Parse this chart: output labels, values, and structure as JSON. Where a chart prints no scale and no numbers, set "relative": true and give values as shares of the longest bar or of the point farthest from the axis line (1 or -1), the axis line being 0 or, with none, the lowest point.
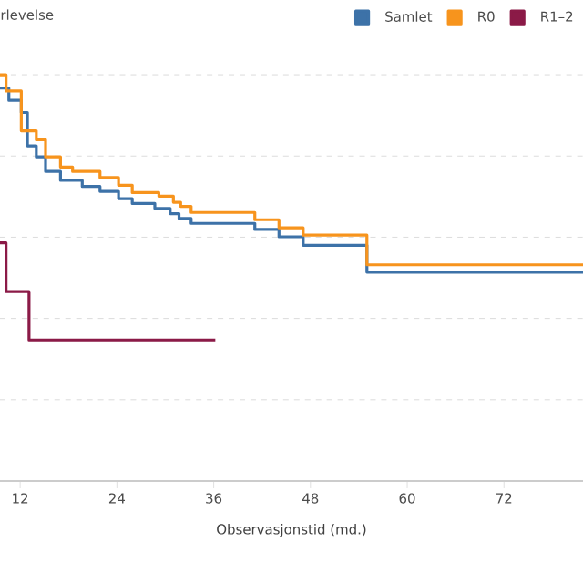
{
  "chart_data": {
    "type": "step",
    "title": "rlevelse",
    "xlabel": "Observasjonstid (md.)",
    "relative": true,
    "xlim": [
      9.5,
      81.8
    ],
    "xticks": [
      12,
      24,
      36,
      48,
      60,
      72
    ],
    "grid": "y",
    "legend": "top right",
    "series": [
      {
        "name": "Samlet",
        "color": "#3d72a8",
        "x": [
          9.5,
          10.6,
          12.14,
          12.9,
          14.0,
          15.15,
          17.0,
          19.7,
          21.9,
          24.2,
          25.9,
          28.7,
          30.6,
          31.7,
          33.2,
          41.1,
          44.1,
          47.1,
          55.0,
          81.8
        ],
        "values": [
          0.967,
          0.937,
          0.907,
          0.825,
          0.798,
          0.762,
          0.74,
          0.725,
          0.713,
          0.695,
          0.683,
          0.671,
          0.658,
          0.646,
          0.634,
          0.619,
          0.601,
          0.58,
          0.514,
          0.514
        ]
      },
      {
        "name": "R0",
        "color": "#f7941d",
        "x": [
          9.5,
          10.25,
          12.14,
          14.0,
          15.15,
          17.0,
          18.5,
          21.9,
          24.2,
          25.9,
          29.2,
          31.0,
          31.9,
          33.2,
          41.1,
          44.1,
          47.1,
          55.0,
          81.8
        ],
        "values": [
          1.0,
          0.96,
          0.862,
          0.84,
          0.798,
          0.773,
          0.762,
          0.747,
          0.728,
          0.71,
          0.701,
          0.686,
          0.676,
          0.661,
          0.643,
          0.623,
          0.605,
          0.532,
          0.532
        ]
      },
      {
        "name": "R1–2",
        "color": "#8b1a47",
        "x": [
          9.5,
          10.25,
          13.1,
          36.2
        ],
        "values": [
          0.586,
          0.466,
          0.347,
          0.347
        ]
      }
    ]
  }
}
